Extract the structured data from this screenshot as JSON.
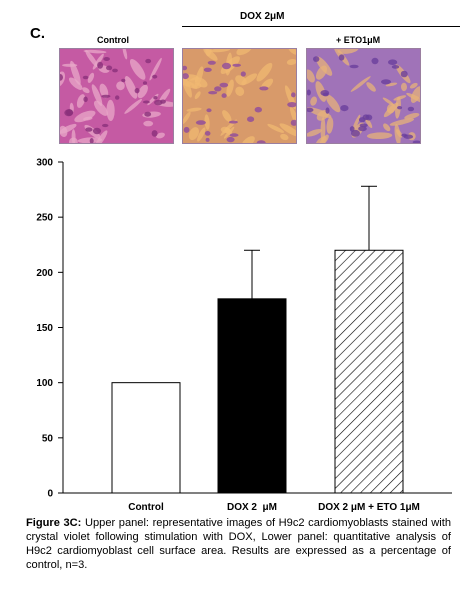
{
  "panel_letter": "C.",
  "image_labels": {
    "control": "Control",
    "dox_group": "DOX 2μM",
    "dox_eto": "+ ETO1μM"
  },
  "micrograph_colors": {
    "control": {
      "bg": "#c55aa3",
      "cell": "#e8a8c8",
      "dark": "#8a2f7a"
    },
    "dox": {
      "bg": "#d89a6a",
      "cell": "#f0b872",
      "dark": "#8e4a9e"
    },
    "dox_eto": {
      "bg": "#a073b8",
      "cell": "#e7b27a",
      "dark": "#6a3f9c"
    }
  },
  "chart_data": {
    "type": "bar",
    "categories": [
      "Control",
      "DOX 2  μM",
      "DOX 2 μM + ETO 1μM"
    ],
    "values": [
      100,
      176,
      220
    ],
    "errors": [
      0,
      44,
      58
    ],
    "bar_styles": [
      "white",
      "black",
      "hatched"
    ],
    "ylim": [
      0,
      300
    ],
    "yticks": [
      "0",
      "50",
      "100",
      "150",
      "200",
      "250",
      "300"
    ],
    "xlabel": "",
    "ylabel": "",
    "grid": false
  },
  "caption": {
    "figure_label": "Figure 3C:",
    "text": " Upper panel: representative images of H9c2 cardiomyoblasts stained with crystal violet following stimulation with DOX, Lower panel: quantitative analysis of H9c2 cardiomyoblast cell surface area. Results are expressed as a percentage of control, n=3."
  }
}
